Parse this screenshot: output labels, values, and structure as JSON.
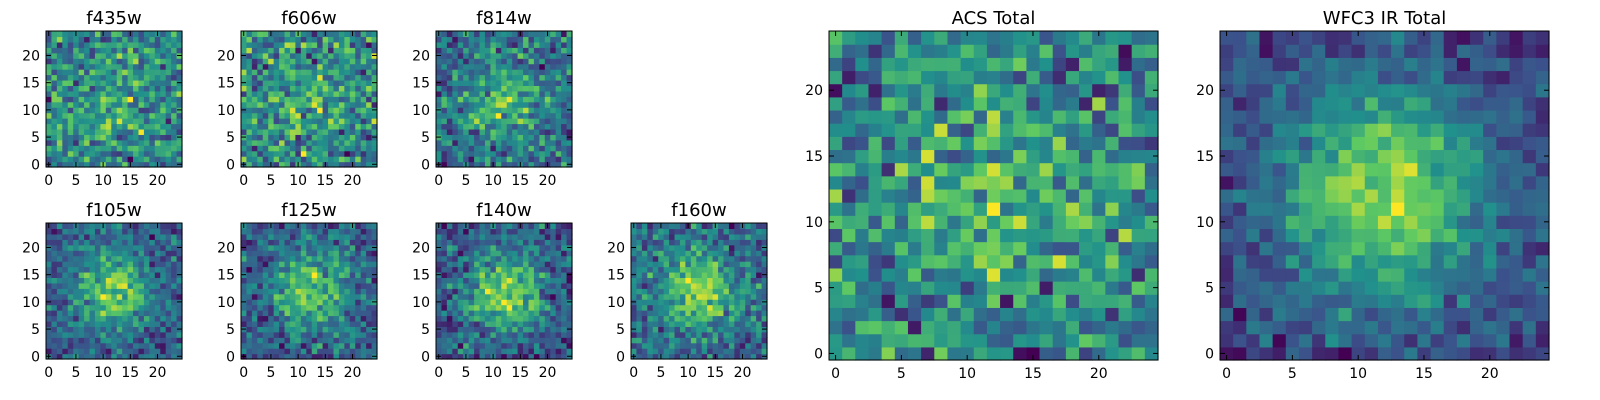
{
  "chart_data": [
    {
      "type": "heatmap",
      "title": "f435w",
      "x_ticks": [
        0,
        5,
        10,
        15,
        20
      ],
      "y_ticks": [
        0,
        5,
        10,
        15,
        20
      ],
      "xlim": [
        -0.5,
        24.5
      ],
      "ylim": [
        -0.5,
        24.5
      ],
      "grid_size": 25,
      "colormap": "viridis",
      "signal": {
        "center": [
          12,
          12
        ],
        "peak": 0.25,
        "sigma": 6
      },
      "noise": 0.55,
      "seed": 11
    },
    {
      "type": "heatmap",
      "title": "f606w",
      "x_ticks": [
        0,
        5,
        10,
        15,
        20
      ],
      "y_ticks": [
        0,
        5,
        10,
        15,
        20
      ],
      "xlim": [
        -0.5,
        24.5
      ],
      "ylim": [
        -0.5,
        24.5
      ],
      "grid_size": 25,
      "colormap": "viridis",
      "signal": {
        "center": [
          12,
          12
        ],
        "peak": 0.2,
        "sigma": 6
      },
      "noise": 0.55,
      "seed": 23
    },
    {
      "type": "heatmap",
      "title": "f814w",
      "x_ticks": [
        0,
        5,
        10,
        15,
        20
      ],
      "y_ticks": [
        0,
        5,
        10,
        15,
        20
      ],
      "xlim": [
        -0.5,
        24.5
      ],
      "ylim": [
        -0.5,
        24.5
      ],
      "grid_size": 25,
      "colormap": "viridis",
      "signal": {
        "center": [
          12,
          12
        ],
        "peak": 0.5,
        "sigma": 5
      },
      "noise": 0.5,
      "seed": 37
    },
    {
      "type": "heatmap",
      "title": "f105w",
      "x_ticks": [
        0,
        5,
        10,
        15,
        20
      ],
      "y_ticks": [
        0,
        5,
        10,
        15,
        20
      ],
      "xlim": [
        -0.5,
        24.5
      ],
      "ylim": [
        -0.5,
        24.5
      ],
      "grid_size": 25,
      "colormap": "viridis",
      "signal": {
        "center": [
          12,
          12
        ],
        "peak": 0.85,
        "sigma": 4.5
      },
      "noise": 0.4,
      "seed": 41
    },
    {
      "type": "heatmap",
      "title": "f125w",
      "x_ticks": [
        0,
        5,
        10,
        15,
        20
      ],
      "y_ticks": [
        0,
        5,
        10,
        15,
        20
      ],
      "xlim": [
        -0.5,
        24.5
      ],
      "ylim": [
        -0.5,
        24.5
      ],
      "grid_size": 25,
      "colormap": "viridis",
      "signal": {
        "center": [
          12,
          12
        ],
        "peak": 0.8,
        "sigma": 4.5
      },
      "noise": 0.45,
      "seed": 53
    },
    {
      "type": "heatmap",
      "title": "f140w",
      "x_ticks": [
        0,
        5,
        10,
        15,
        20
      ],
      "y_ticks": [
        0,
        5,
        10,
        15,
        20
      ],
      "xlim": [
        -0.5,
        24.5
      ],
      "ylim": [
        -0.5,
        24.5
      ],
      "grid_size": 25,
      "colormap": "viridis",
      "signal": {
        "center": [
          12,
          12
        ],
        "peak": 0.85,
        "sigma": 5
      },
      "noise": 0.4,
      "seed": 67
    },
    {
      "type": "heatmap",
      "title": "f160w",
      "x_ticks": [
        0,
        5,
        10,
        15,
        20
      ],
      "y_ticks": [
        0,
        5,
        10,
        15,
        20
      ],
      "xlim": [
        -0.5,
        24.5
      ],
      "ylim": [
        -0.5,
        24.5
      ],
      "grid_size": 25,
      "colormap": "viridis",
      "signal": {
        "center": [
          12,
          12
        ],
        "peak": 0.8,
        "sigma": 4.5
      },
      "noise": 0.45,
      "seed": 79
    },
    {
      "type": "heatmap",
      "title": "ACS Total",
      "x_ticks": [
        0,
        5,
        10,
        15,
        20
      ],
      "y_ticks": [
        0,
        5,
        10,
        15,
        20
      ],
      "xlim": [
        -0.5,
        24.5
      ],
      "ylim": [
        -0.5,
        24.5
      ],
      "grid_size": 25,
      "colormap": "viridis",
      "signal": {
        "center": [
          12,
          12
        ],
        "peak": 0.3,
        "sigma": 6
      },
      "noise": 0.5,
      "seed": 83
    },
    {
      "type": "heatmap",
      "title": "WFC3 IR Total",
      "x_ticks": [
        0,
        5,
        10,
        15,
        20
      ],
      "y_ticks": [
        0,
        5,
        10,
        15,
        20
      ],
      "xlim": [
        -0.5,
        24.5
      ],
      "ylim": [
        -0.5,
        24.5
      ],
      "grid_size": 25,
      "colormap": "viridis",
      "signal": {
        "center": [
          12,
          12
        ],
        "peak": 1.0,
        "sigma": 5.5
      },
      "noise": 0.28,
      "seed": 97
    }
  ],
  "colormap_stops": [
    "#440154",
    "#3b528b",
    "#21918c",
    "#5ec962",
    "#fde725"
  ]
}
